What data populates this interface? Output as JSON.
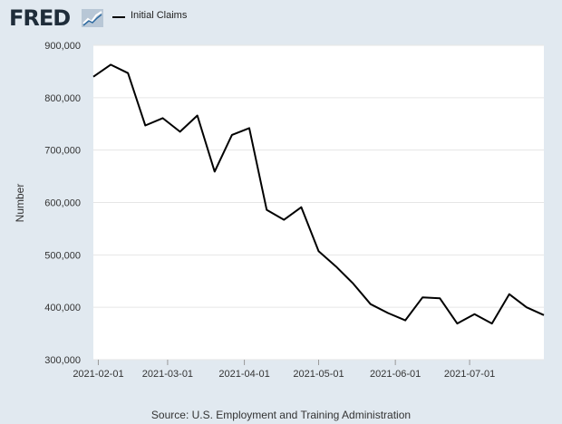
{
  "header": {
    "logo_text": "FRED",
    "logo_icon": "chart-line-icon",
    "legend_label": "Initial Claims",
    "legend_color": "#000000"
  },
  "source": "Source: U.S. Employment and Training Administration",
  "chart_data": {
    "type": "line",
    "title": "",
    "xlabel": "",
    "ylabel": "Number",
    "ylim": [
      300000,
      900000
    ],
    "y_ticks": [
      300000,
      400000,
      500000,
      600000,
      700000,
      800000,
      900000
    ],
    "y_tick_labels": [
      "300,000",
      "400,000",
      "500,000",
      "600,000",
      "700,000",
      "800,000",
      "900,000"
    ],
    "x_range": [
      "2021-01-30",
      "2021-07-31"
    ],
    "x_ticks": [
      "2021-02-01",
      "2021-03-01",
      "2021-04-01",
      "2021-05-01",
      "2021-06-01",
      "2021-07-01"
    ],
    "grid": true,
    "legend_position": "top-left",
    "series": [
      {
        "name": "Initial Claims",
        "color": "#000000",
        "x": [
          "2021-01-30",
          "2021-02-06",
          "2021-02-13",
          "2021-02-20",
          "2021-02-27",
          "2021-03-06",
          "2021-03-13",
          "2021-03-20",
          "2021-03-27",
          "2021-04-03",
          "2021-04-10",
          "2021-04-17",
          "2021-04-24",
          "2021-05-01",
          "2021-05-08",
          "2021-05-15",
          "2021-05-22",
          "2021-05-29",
          "2021-06-05",
          "2021-06-12",
          "2021-06-19",
          "2021-06-26",
          "2021-07-03",
          "2021-07-10",
          "2021-07-17",
          "2021-07-24",
          "2021-07-31"
        ],
        "values": [
          840000,
          863000,
          847000,
          747000,
          761000,
          735000,
          766000,
          659000,
          729000,
          742000,
          586000,
          567000,
          591000,
          507000,
          478000,
          445000,
          406000,
          389000,
          375000,
          419000,
          417000,
          369000,
          387000,
          369000,
          425000,
          400000,
          385000
        ]
      }
    ]
  }
}
